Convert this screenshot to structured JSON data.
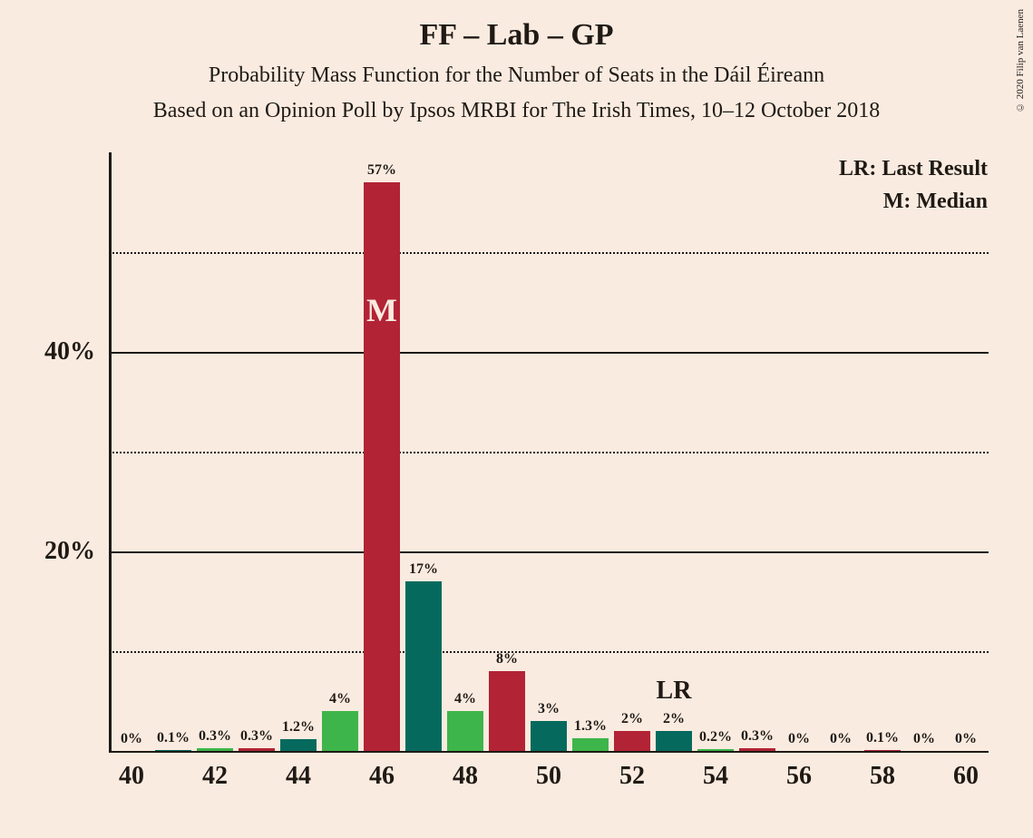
{
  "title": "FF – Lab – GP",
  "subtitle1": "Probability Mass Function for the Number of Seats in the Dáil Éireann",
  "subtitle2": "Based on an Opinion Poll by Ipsos MRBI for The Irish Times, 10–12 October 2018",
  "legend": {
    "lr": "LR: Last Result",
    "m": "M: Median"
  },
  "copyright": "© 2020 Filip van Laenen",
  "chart": {
    "type": "bar",
    "background_color": "#faebe0",
    "text_color": "#1f1a15",
    "ylim": [
      0,
      60
    ],
    "y_major_ticks": [
      20,
      40
    ],
    "y_minor_ticks": [
      10,
      30,
      50
    ],
    "y_tick_labels": [
      "20%",
      "40%"
    ],
    "xlim": [
      40,
      60
    ],
    "x_ticks": [
      40,
      42,
      44,
      46,
      48,
      50,
      52,
      54,
      56,
      58,
      60
    ],
    "x_tick_labels": [
      "40",
      "42",
      "44",
      "46",
      "48",
      "50",
      "52",
      "54",
      "56",
      "58",
      "60"
    ],
    "bar_width_ratio": 0.85,
    "colors": {
      "green_light": "#3eb54a",
      "teal": "#056a5d",
      "red": "#b22335"
    },
    "median_seat": 46,
    "median_label": "M",
    "lr_seat": 53,
    "lr_label": "LR",
    "bars": [
      {
        "seat": 40,
        "value": 0,
        "label": "0%",
        "color": "#3eb54a"
      },
      {
        "seat": 41,
        "value": 0.1,
        "label": "0.1%",
        "color": "#056a5d"
      },
      {
        "seat": 42,
        "value": 0.3,
        "label": "0.3%",
        "color": "#3eb54a"
      },
      {
        "seat": 43,
        "value": 0.3,
        "label": "0.3%",
        "color": "#b22335"
      },
      {
        "seat": 44,
        "value": 1.2,
        "label": "1.2%",
        "color": "#056a5d"
      },
      {
        "seat": 45,
        "value": 4,
        "label": "4%",
        "color": "#3eb54a"
      },
      {
        "seat": 46,
        "value": 57,
        "label": "57%",
        "color": "#b22335"
      },
      {
        "seat": 47,
        "value": 17,
        "label": "17%",
        "color": "#056a5d"
      },
      {
        "seat": 48,
        "value": 4,
        "label": "4%",
        "color": "#3eb54a"
      },
      {
        "seat": 49,
        "value": 8,
        "label": "8%",
        "color": "#b22335"
      },
      {
        "seat": 50,
        "value": 3,
        "label": "3%",
        "color": "#056a5d"
      },
      {
        "seat": 51,
        "value": 1.3,
        "label": "1.3%",
        "color": "#3eb54a"
      },
      {
        "seat": 52,
        "value": 2,
        "label": "2%",
        "color": "#b22335"
      },
      {
        "seat": 53,
        "value": 2,
        "label": "2%",
        "color": "#056a5d"
      },
      {
        "seat": 54,
        "value": 0.2,
        "label": "0.2%",
        "color": "#3eb54a"
      },
      {
        "seat": 55,
        "value": 0.3,
        "label": "0.3%",
        "color": "#b22335"
      },
      {
        "seat": 56,
        "value": 0,
        "label": "0%",
        "color": "#056a5d"
      },
      {
        "seat": 57,
        "value": 0,
        "label": "0%",
        "color": "#3eb54a"
      },
      {
        "seat": 58,
        "value": 0.1,
        "label": "0.1%",
        "color": "#b22335"
      },
      {
        "seat": 59,
        "value": 0,
        "label": "0%",
        "color": "#056a5d"
      },
      {
        "seat": 60,
        "value": 0,
        "label": "0%",
        "color": "#3eb54a"
      }
    ]
  }
}
